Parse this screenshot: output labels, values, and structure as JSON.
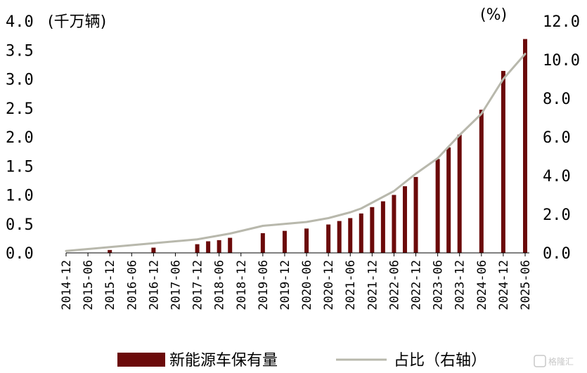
{
  "chart_data": {
    "type": "bar",
    "title": "",
    "y_left_unit": "(千万辆)",
    "y_right_unit": "(%)",
    "y_left_ticks": [
      "0.0",
      "0.5",
      "1.0",
      "1.5",
      "2.0",
      "2.5",
      "3.0",
      "3.5",
      "4.0"
    ],
    "y_right_ticks": [
      "0.0",
      "2.0",
      "4.0",
      "6.0",
      "8.0",
      "10.0",
      "12.0"
    ],
    "ylim_left": [
      0,
      4.0
    ],
    "ylim_right": [
      0,
      12.0
    ],
    "x_tick_labels": [
      "2014-12",
      "2015-06",
      "2015-12",
      "2016-06",
      "2016-12",
      "2017-06",
      "2017-12",
      "2018-06",
      "2018-12",
      "2019-06",
      "2019-12",
      "2020-06",
      "2020-12",
      "2021-06",
      "2021-12",
      "2022-06",
      "2022-12",
      "2023-06",
      "2023-12",
      "2024-06",
      "2024-12",
      "2025-06"
    ],
    "x_range_months": [
      "2014-12",
      "2025-06"
    ],
    "series": [
      {
        "name": "新能源车保有量",
        "axis": "left",
        "kind": "bar",
        "color": "#6b0a0a",
        "points": [
          {
            "x": "2015-12",
            "y": 0.05
          },
          {
            "x": "2016-12",
            "y": 0.09
          },
          {
            "x": "2017-12",
            "y": 0.15
          },
          {
            "x": "2018-03",
            "y": 0.2
          },
          {
            "x": "2018-06",
            "y": 0.22
          },
          {
            "x": "2018-09",
            "y": 0.26
          },
          {
            "x": "2019-06",
            "y": 0.34
          },
          {
            "x": "2019-12",
            "y": 0.38
          },
          {
            "x": "2020-06",
            "y": 0.42
          },
          {
            "x": "2020-12",
            "y": 0.49
          },
          {
            "x": "2021-03",
            "y": 0.55
          },
          {
            "x": "2021-06",
            "y": 0.6
          },
          {
            "x": "2021-09",
            "y": 0.68
          },
          {
            "x": "2021-12",
            "y": 0.79
          },
          {
            "x": "2022-03",
            "y": 0.89
          },
          {
            "x": "2022-06",
            "y": 1.0
          },
          {
            "x": "2022-09",
            "y": 1.15
          },
          {
            "x": "2022-12",
            "y": 1.31
          },
          {
            "x": "2023-06",
            "y": 1.62
          },
          {
            "x": "2023-09",
            "y": 1.82
          },
          {
            "x": "2023-12",
            "y": 2.04
          },
          {
            "x": "2024-06",
            "y": 2.47
          },
          {
            "x": "2024-12",
            "y": 3.14
          },
          {
            "x": "2025-06",
            "y": 3.69
          }
        ]
      },
      {
        "name": "占比（右轴）",
        "axis": "right",
        "kind": "line",
        "color": "#b8b8ac",
        "points": [
          {
            "x": "2014-12",
            "y": 0.1
          },
          {
            "x": "2015-12",
            "y": 0.3
          },
          {
            "x": "2016-12",
            "y": 0.5
          },
          {
            "x": "2017-12",
            "y": 0.7
          },
          {
            "x": "2018-06",
            "y": 0.9
          },
          {
            "x": "2018-09",
            "y": 1.0
          },
          {
            "x": "2019-06",
            "y": 1.4
          },
          {
            "x": "2019-12",
            "y": 1.5
          },
          {
            "x": "2020-06",
            "y": 1.6
          },
          {
            "x": "2020-12",
            "y": 1.8
          },
          {
            "x": "2021-06",
            "y": 2.1
          },
          {
            "x": "2021-09",
            "y": 2.3
          },
          {
            "x": "2021-12",
            "y": 2.6
          },
          {
            "x": "2022-06",
            "y": 3.2
          },
          {
            "x": "2022-12",
            "y": 4.1
          },
          {
            "x": "2023-06",
            "y": 4.9
          },
          {
            "x": "2023-12",
            "y": 6.1
          },
          {
            "x": "2024-06",
            "y": 7.2
          },
          {
            "x": "2024-12",
            "y": 9.0
          },
          {
            "x": "2025-06",
            "y": 10.3
          }
        ]
      }
    ],
    "legend": {
      "placement": "bottom",
      "items": [
        {
          "label": "新能源车保有量",
          "kind": "bar",
          "color": "#6b0a0a"
        },
        {
          "label": "占比（右轴）",
          "kind": "line",
          "color": "#b8b8ac"
        }
      ]
    },
    "grid": false
  },
  "watermark": "格隆汇"
}
